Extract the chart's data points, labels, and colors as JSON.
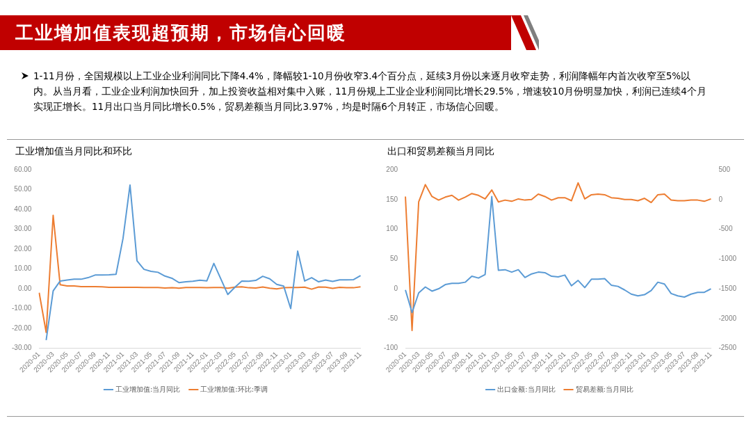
{
  "chart_data": [
    {
      "type": "line",
      "title": "工业增加值当月同比和环比",
      "annotations": [
        "工业增加值表现超预期，市场信心回暖",
        "1-11月份，全国规模以上工业企业利润同比下降4.4%，降幅较1-10月份收窄3.4个百分点，延续3月份以来逐月收窄走势，利润降幅年内首次收窄至5%以内。从当月看，工业企业利润加快回升，加上投资收益相对集中入账，11月份规上工业企业利润同比增长29.5%，增速较10月份明显加快，利润已连续4个月实现正增长。11月出口当月同比增长0.5%，贸易差额当月同比3.97%，均是时隔6个月转正，市场信心回暖。"
      ],
      "categories": [
        "2020-01",
        null,
        "2020-03",
        null,
        "2020-05",
        null,
        "2020-07",
        null,
        "2020-09",
        null,
        "2020-11",
        null,
        "2021-01",
        null,
        "2021-03",
        null,
        "2021-05",
        null,
        "2021-07",
        null,
        "2021-09",
        null,
        "2021-11",
        null,
        "2022-01",
        null,
        "2022-03",
        null,
        "2022-05",
        null,
        "2022-07",
        null,
        "2022-09",
        null,
        "2022-11",
        null,
        "2023-01",
        null,
        "2023-03",
        null,
        "2023-05",
        null,
        "2023-07",
        null,
        "2023-09",
        null,
        "2023-11"
      ],
      "series": [
        {
          "name": "工业增加值:当月同比",
          "color": "#5b9bd5",
          "values": [
            null,
            -25.9,
            -1.1,
            3.9,
            4.4,
            4.8,
            4.8,
            5.6,
            6.9,
            6.9,
            7.0,
            7.3,
            25.4,
            52.3,
            14.1,
            9.8,
            8.8,
            8.3,
            6.4,
            5.3,
            3.1,
            3.5,
            3.8,
            4.3,
            4.0,
            12.8,
            5.0,
            -2.9,
            0.7,
            3.9,
            3.8,
            4.2,
            6.3,
            5.0,
            2.2,
            1.3,
            -10.0,
            19.0,
            3.9,
            5.6,
            3.5,
            4.4,
            3.7,
            4.5,
            4.5,
            4.6,
            6.6
          ]
        },
        {
          "name": "工业增加值:环比:季调",
          "color": "#ed7d31",
          "values": [
            -2.0,
            -22.0,
            37.0,
            2.0,
            1.4,
            1.4,
            1.1,
            1.1,
            1.1,
            1.0,
            0.7,
            0.7,
            0.7,
            0.7,
            0.7,
            0.6,
            0.6,
            0.6,
            0.4,
            0.5,
            0.3,
            0.6,
            0.6,
            0.6,
            0.5,
            0.6,
            0.6,
            0.3,
            0.8,
            1.0,
            0.5,
            0.4,
            0.9,
            0.3,
            -0.1,
            0.5,
            0.6,
            0.6,
            0.8,
            -0.2,
            0.9,
            0.8,
            0.2,
            0.7,
            0.5,
            0.5,
            1.0
          ]
        }
      ],
      "ylim": [
        -30,
        60
      ],
      "yticks": [
        {
          "value": -30,
          "label": "-30.00"
        },
        {
          "value": -20,
          "label": "-20.00"
        },
        {
          "value": -10,
          "label": "-10.00"
        },
        {
          "value": 0,
          "label": "0.00"
        },
        {
          "value": 10,
          "label": "10.00"
        },
        {
          "value": 20,
          "label": "20.00"
        },
        {
          "value": 30,
          "label": "30.00"
        },
        {
          "value": 40,
          "label": "40.00"
        },
        {
          "value": 50,
          "label": "50.00"
        },
        {
          "value": 60,
          "label": "60.00"
        }
      ],
      "grid": false,
      "legend": "bottom",
      "marker": "none",
      "line_style": "solid"
    },
    {
      "type": "line",
      "title": "出口和贸易差额当月同比",
      "categories": [
        "2020-01",
        null,
        "2020-03",
        null,
        "2020-05",
        null,
        "2020-07",
        null,
        "2020-09",
        null,
        "2020-11",
        null,
        "2021-01",
        null,
        "2021-03",
        null,
        "2021-05",
        null,
        "2021-07",
        null,
        "2021-09",
        null,
        "2021-11",
        null,
        "2022-01",
        null,
        "2022-03",
        null,
        "2022-05",
        null,
        "2022-07",
        null,
        "2022-09",
        null,
        "2022-11",
        null,
        "2023-01",
        null,
        "2023-03",
        null,
        "2023-05",
        null,
        "2023-07",
        null,
        "2023-09",
        null,
        "2023-11"
      ],
      "series": [
        {
          "name": "出口金额:当月同比",
          "color": "#5b9bd5",
          "values": [
            -2,
            -40,
            -7,
            3,
            -4,
            0,
            7,
            9,
            9,
            11,
            21,
            18,
            24,
            155,
            31,
            32,
            28,
            32,
            19,
            25,
            28,
            27,
            21,
            20,
            23,
            5,
            14,
            2,
            16,
            16,
            17,
            6,
            4,
            -2,
            -9,
            -12,
            -10,
            -3,
            11,
            8,
            -8,
            -12,
            -14,
            -9,
            -6,
            -6,
            0
          ]
        },
        {
          "name": "贸易差额:当月同比",
          "color": "#ed7d31",
          "axis": "y2",
          "values": [
            50,
            -2200,
            -40,
            250,
            50,
            -10,
            40,
            70,
            -10,
            40,
            100,
            70,
            10,
            160,
            -40,
            -10,
            -30,
            10,
            -10,
            0,
            90,
            50,
            -10,
            30,
            30,
            -20,
            280,
            10,
            80,
            90,
            80,
            30,
            20,
            0,
            0,
            -20,
            20,
            -50,
            80,
            90,
            -10,
            -20,
            -20,
            -10,
            -10,
            -30,
            10
          ]
        }
      ],
      "ylim": [
        -100,
        200
      ],
      "yticks": [
        -100,
        -50,
        0,
        50,
        100,
        150,
        200
      ],
      "y2lim": [
        -2500,
        500
      ],
      "y2ticks": [
        -2500,
        -2000,
        -1500,
        -1000,
        -500,
        0,
        500
      ],
      "grid": false,
      "legend": "bottom",
      "marker": "none",
      "line_style": "solid"
    }
  ]
}
